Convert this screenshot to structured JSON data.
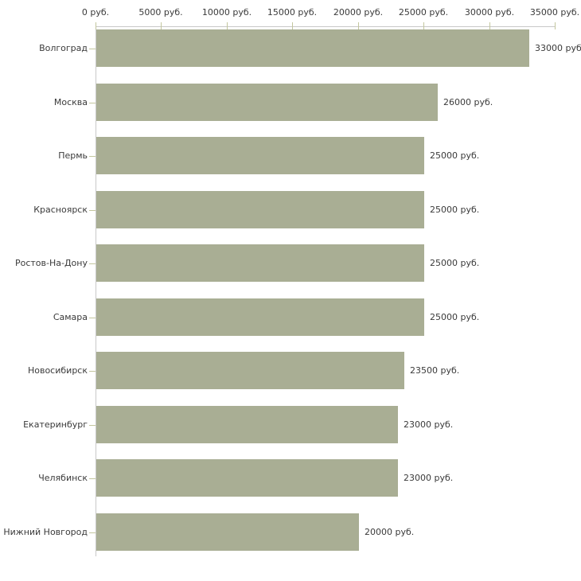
{
  "chart_data": {
    "type": "bar",
    "orientation": "horizontal",
    "title": "",
    "xlabel": "",
    "ylabel": "",
    "grid": false,
    "legend": false,
    "categories": [
      "Волгоград",
      "Москва",
      "Пермь",
      "Красноярск",
      "Ростов-На-Дону",
      "Самара",
      "Новосибирск",
      "Екатеринбург",
      "Челябинск",
      "Нижний Новгород"
    ],
    "values": [
      33000,
      26000,
      25000,
      25000,
      25000,
      25000,
      23500,
      23000,
      23000,
      20000
    ],
    "value_labels": [
      "33000 руб",
      "26000 руб.",
      "25000 руб.",
      "25000 руб.",
      "25000 руб.",
      "25000 руб.",
      "23500 руб.",
      "23000 руб.",
      "23000 руб.",
      "20000 руб."
    ],
    "x_axis": {
      "position": "top",
      "min": 0,
      "max": 35000,
      "tick_values": [
        0,
        5000,
        10000,
        15000,
        20000,
        25000,
        30000,
        35000
      ],
      "tick_labels": [
        "0 руб.",
        "5000 руб.",
        "10000 руб.",
        "15000 руб.",
        "20000 руб.",
        "25000 руб.",
        "30000 руб.",
        "35000 руб."
      ]
    },
    "colors": {
      "bar": "#a9ae94",
      "axis_line": "#c9c9c9",
      "tick_mark": "#c3c69e",
      "text": "#3a3a3a",
      "background": "#ffffff"
    }
  }
}
